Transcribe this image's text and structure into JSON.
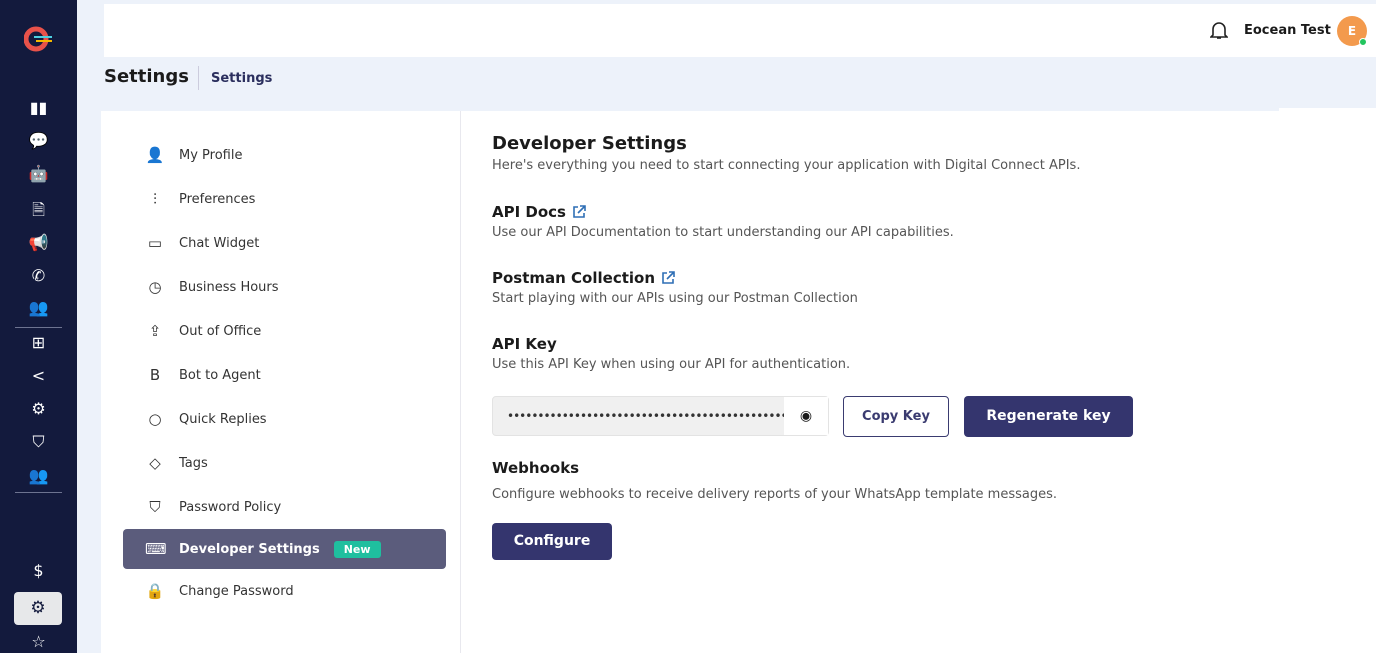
{
  "colors": {
    "rail": "#131a3d",
    "primary": "#34356e",
    "selected": "#5b5c7c",
    "badge": "#1fbf9f",
    "avatar": "#f39a4d"
  },
  "rail": {
    "icons": [
      "analytics-icon",
      "chats-icon",
      "bot-icon",
      "document-icon",
      "megaphone-icon",
      "whatsapp-icon",
      "team-icon",
      "network-icon",
      "share-icon",
      "gears-icon",
      "shield-icon",
      "users-icon",
      "billing-icon",
      "settings-icon",
      "star-icon"
    ]
  },
  "header": {
    "user_name": "Eocean Test",
    "avatar_initial": "E"
  },
  "page": {
    "title": "Settings",
    "breadcrumb": "Settings"
  },
  "nav": {
    "items": [
      {
        "label": "My Profile",
        "icon": "user-icon"
      },
      {
        "label": "Preferences",
        "icon": "sliders-icon"
      },
      {
        "label": "Chat Widget",
        "icon": "chat-icon"
      },
      {
        "label": "Business Hours",
        "icon": "clock-icon"
      },
      {
        "label": "Out of Office",
        "icon": "upload-icon"
      },
      {
        "label": "Bot to Agent",
        "icon": "bold-b-icon"
      },
      {
        "label": "Quick Replies",
        "icon": "bubble-icon"
      },
      {
        "label": "Tags",
        "icon": "tag-icon"
      },
      {
        "label": "Password Policy",
        "icon": "shield-icon"
      },
      {
        "label": "Developer Settings",
        "icon": "laptop-icon",
        "badge": "New",
        "selected": true
      },
      {
        "label": "Change Password",
        "icon": "lock-icon"
      }
    ]
  },
  "main": {
    "title": "Developer Settings",
    "subtitle": "Here's everything you need to start connecting your application with Digital Connect APIs.",
    "api_docs": {
      "title": "API Docs",
      "desc": "Use our API Documentation to start understanding our API capabilities."
    },
    "postman": {
      "title": "Postman Collection",
      "desc": "Start playing with our APIs using our Postman Collection"
    },
    "api_key": {
      "title": "API Key",
      "desc": "Use this API Key when using our API for authentication.",
      "value": "••••••••••••••••••••••••••••••••••••••••••••••••••••••••••••••••••••••••",
      "copy": "Copy Key",
      "regenerate": "Regenerate key"
    },
    "webhooks": {
      "title": "Webhooks",
      "desc": "Configure webhooks to receive delivery reports of your WhatsApp template messages.",
      "configure": "Configure"
    }
  }
}
